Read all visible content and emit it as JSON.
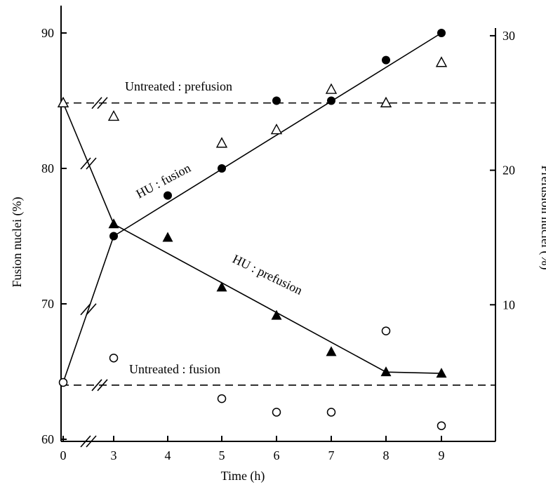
{
  "chart_data": {
    "type": "line",
    "title": "",
    "xlabel": "Time (h)",
    "ylabel": "Fusion nuclei (%)",
    "y2label": "Prefusion nuclei (%)",
    "x_ticks": [
      "0",
      "3",
      "4",
      "5",
      "6",
      "7",
      "8",
      "9"
    ],
    "y_ticks": [
      "60",
      "70",
      "80",
      "90"
    ],
    "y2_ticks": [
      "10",
      "20",
      "30"
    ],
    "ylim": [
      60,
      92
    ],
    "y2lim": [
      0,
      32
    ],
    "axis_breaks": [
      "x between 0 and 3",
      "left axis between 0 and 60"
    ],
    "legend": "none (inline line labels)",
    "series": [
      {
        "name": "HU : fusion",
        "axis": "left",
        "marker": "filled circle",
        "line": "solid",
        "x": [
          0,
          3,
          4,
          5,
          6,
          7,
          8,
          9
        ],
        "values": [
          64.2,
          75,
          78,
          80,
          85,
          85,
          88,
          90
        ],
        "fit_line": [
          [
            0,
            64.2
          ],
          [
            3,
            75
          ],
          [
            9,
            90
          ]
        ]
      },
      {
        "name": "HU : prefusion",
        "axis": "right",
        "marker": "filled triangle",
        "line": "solid",
        "x": [
          0,
          3,
          4,
          5,
          6,
          7,
          8,
          9
        ],
        "values": [
          25,
          16,
          15,
          11.3,
          9.2,
          6.5,
          5,
          4.9
        ],
        "fit_line": [
          [
            0,
            25
          ],
          [
            3,
            16
          ],
          [
            8,
            5
          ],
          [
            9,
            4.9
          ]
        ]
      },
      {
        "name": "Untreated : prefusion",
        "axis": "right",
        "marker": "open triangle",
        "line": "dashed",
        "x": [
          0,
          3,
          5,
          6,
          7,
          8,
          9
        ],
        "values": [
          25,
          24,
          22,
          23,
          26,
          25,
          28
        ],
        "ref_line": 25
      },
      {
        "name": "Untreated : fusion",
        "axis": "left",
        "marker": "open circle",
        "line": "dashed",
        "x": [
          0,
          3,
          5,
          6,
          7,
          8,
          9
        ],
        "values": [
          64.2,
          66,
          63,
          62,
          62,
          68,
          61
        ],
        "ref_line": 64
      }
    ]
  }
}
